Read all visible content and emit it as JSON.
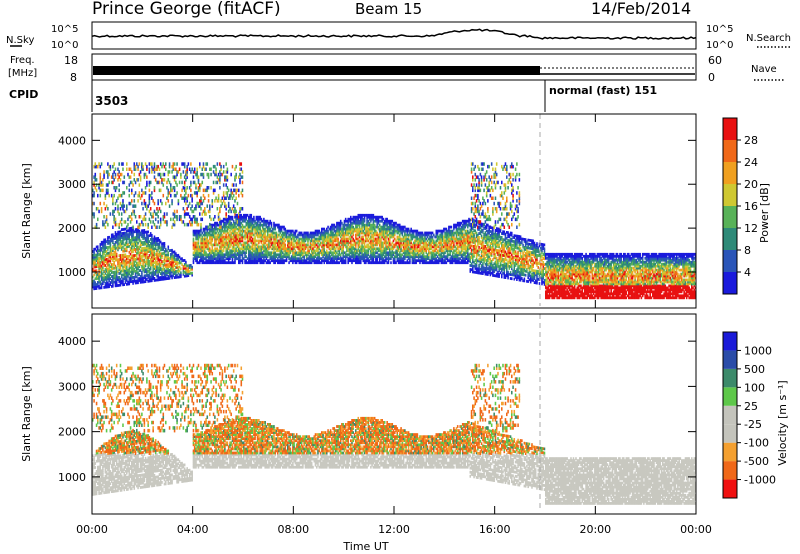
{
  "header": {
    "station": "Prince George (fitACF)",
    "beam": "Beam 15",
    "date": "14/Feb/2014"
  },
  "noise_panel": {
    "left_label": "N.Sky",
    "right_label": "N.Search",
    "left_ticks": [
      "10^5",
      "10^0"
    ],
    "right_ticks": [
      "10^5",
      "10^0"
    ]
  },
  "freq_panel": {
    "left_label_line1": "Freq.",
    "left_label_line2": "[MHz]",
    "left_ticks": [
      "18",
      "8"
    ],
    "right_label": "Nave",
    "right_ticks": [
      "60",
      "0"
    ]
  },
  "cpid_panel": {
    "label": "CPID",
    "segments": [
      {
        "start_hour": 0,
        "text": "3503"
      },
      {
        "start_hour": 18,
        "text": "normal (fast) 151"
      }
    ],
    "switch_hour": 18
  },
  "colors": {
    "power": [
      "#1a1adc",
      "#2a55b8",
      "#2e8a78",
      "#58b258",
      "#cfc832",
      "#f0a020",
      "#f06818",
      "#e81010"
    ],
    "velocity": [
      "#f01010",
      "#f06818",
      "#f4a030",
      "#c4c4bc",
      "#c4c4bc",
      "#5ec84a",
      "#3c8a6a",
      "#2a4ca8",
      "#1a1ad8"
    ]
  },
  "chart_data": [
    {
      "type": "heatmap",
      "name": "power",
      "ylabel": "Slant Range [km]",
      "yticks": [
        1000,
        2000,
        3000,
        4000
      ],
      "ylim": [
        180,
        4600
      ],
      "xlim": [
        0,
        24
      ],
      "colorbar": {
        "label": "Power [dB]",
        "ticks": [
          "28",
          "24",
          "20",
          "16",
          "12",
          "8",
          "4"
        ],
        "range": [
          0,
          32
        ]
      },
      "x": [
        0,
        4,
        8,
        12,
        16,
        20,
        24
      ]
    },
    {
      "type": "heatmap",
      "name": "velocity",
      "ylabel": "Slant Range [km]",
      "yticks": [
        1000,
        2000,
        3000,
        4000
      ],
      "ylim": [
        180,
        4600
      ],
      "xlim": [
        0,
        24
      ],
      "colorbar": {
        "label": "Velocity [m s⁻¹]",
        "ticks": [
          "1000",
          "500",
          "100",
          "25",
          "-25",
          "-100",
          "-500",
          "-1000"
        ]
      },
      "xlabel": "Time UT",
      "xtick_labels": [
        "00:00",
        "04:00",
        "08:00",
        "12:00",
        "16:00",
        "20:00",
        "00:00"
      ],
      "x": [
        0,
        4,
        8,
        12,
        16,
        20,
        24
      ]
    }
  ]
}
